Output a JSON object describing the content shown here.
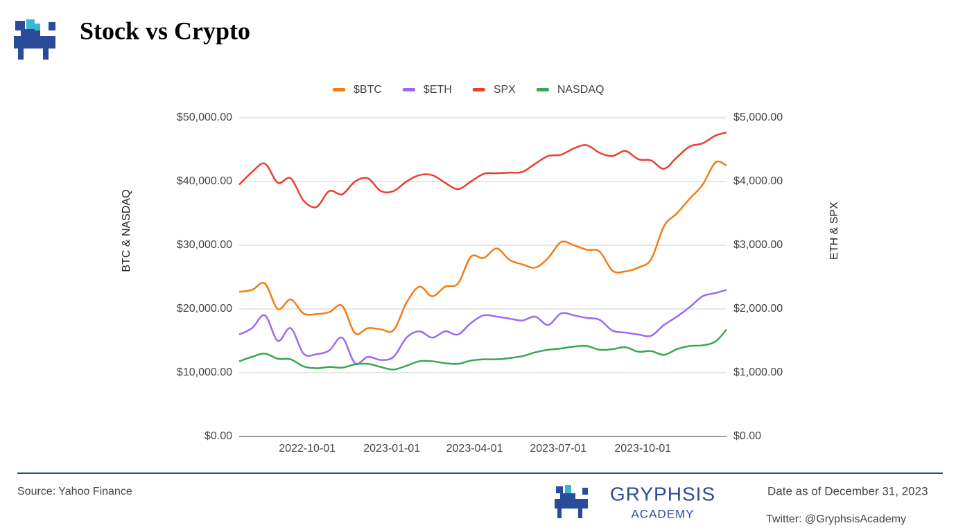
{
  "header": {
    "title": "Stock vs Crypto"
  },
  "chart_data": {
    "type": "line",
    "x": [
      "2022-07-19",
      "2022-08-02",
      "2022-08-16",
      "2022-08-30",
      "2022-09-13",
      "2022-09-27",
      "2022-10-11",
      "2022-10-25",
      "2022-11-08",
      "2022-11-22",
      "2022-12-06",
      "2022-12-20",
      "2023-01-03",
      "2023-01-17",
      "2023-01-31",
      "2023-02-14",
      "2023-02-28",
      "2023-03-14",
      "2023-03-28",
      "2023-04-11",
      "2023-04-25",
      "2023-05-09",
      "2023-05-23",
      "2023-06-06",
      "2023-06-20",
      "2023-07-04",
      "2023-07-18",
      "2023-08-01",
      "2023-08-15",
      "2023-08-29",
      "2023-09-12",
      "2023-09-26",
      "2023-10-10",
      "2023-10-24",
      "2023-11-07",
      "2023-11-21",
      "2023-12-05",
      "2023-12-19",
      "2023-12-31"
    ],
    "series": [
      {
        "name": "$BTC",
        "color": "#f57c10",
        "axis": "y",
        "values": [
          22700,
          23000,
          24000,
          20000,
          21500,
          19300,
          19200,
          19500,
          20500,
          16200,
          17000,
          16800,
          16700,
          21000,
          23500,
          22000,
          23500,
          24000,
          28200,
          28000,
          29500,
          27700,
          27000,
          26500,
          28000,
          30500,
          30000,
          29300,
          29000,
          26000,
          25900,
          26500,
          27800,
          33000,
          35000,
          37300,
          39500,
          43000,
          42500
        ]
      },
      {
        "name": "$ETH",
        "color": "#9a6bf0",
        "axis": "y2",
        "values": [
          1600,
          1700,
          1900,
          1500,
          1700,
          1300,
          1290,
          1350,
          1550,
          1150,
          1250,
          1200,
          1250,
          1550,
          1650,
          1550,
          1650,
          1600,
          1780,
          1900,
          1880,
          1850,
          1820,
          1880,
          1750,
          1930,
          1900,
          1860,
          1830,
          1660,
          1630,
          1600,
          1580,
          1750,
          1880,
          2030,
          2200,
          2250,
          2300
        ]
      },
      {
        "name": "SPX",
        "color": "#e8402f",
        "axis": "y2",
        "values": [
          3950,
          4150,
          4280,
          3980,
          4050,
          3700,
          3600,
          3850,
          3800,
          4000,
          4050,
          3850,
          3850,
          4000,
          4100,
          4100,
          3980,
          3880,
          4000,
          4120,
          4130,
          4140,
          4150,
          4280,
          4400,
          4420,
          4520,
          4570,
          4450,
          4400,
          4480,
          4350,
          4330,
          4200,
          4380,
          4550,
          4600,
          4720,
          4770
        ]
      },
      {
        "name": "NASDAQ",
        "color": "#34a853",
        "axis": "y",
        "values": [
          11800,
          12500,
          13000,
          12200,
          12100,
          11000,
          10700,
          10900,
          10800,
          11300,
          11400,
          10900,
          10500,
          11100,
          11800,
          11800,
          11500,
          11400,
          11900,
          12100,
          12100,
          12300,
          12600,
          13200,
          13600,
          13800,
          14100,
          14200,
          13600,
          13700,
          14000,
          13300,
          13400,
          12800,
          13700,
          14200,
          14300,
          14900,
          16800
        ]
      }
    ],
    "xlim": [
      "2022-07-19",
      "2023-12-31"
    ],
    "xticks": [
      "2022-10-01",
      "2023-01-01",
      "2023-04-01",
      "2023-07-01",
      "2023-10-01"
    ],
    "ylim": [
      0,
      50000
    ],
    "yticks": [
      {
        "value": 0,
        "label": "$0.00"
      },
      {
        "value": 10000,
        "label": "$10,000.00"
      },
      {
        "value": 20000,
        "label": "$20,000.00"
      },
      {
        "value": 30000,
        "label": "$30,000.00"
      },
      {
        "value": 40000,
        "label": "$40,000.00"
      },
      {
        "value": 50000,
        "label": "$50,000.00"
      }
    ],
    "y2lim": [
      0,
      5000
    ],
    "y2ticks": [
      {
        "value": 0,
        "label": "$0.00"
      },
      {
        "value": 1000,
        "label": "$1,000.00"
      },
      {
        "value": 2000,
        "label": "$2,000.00"
      },
      {
        "value": 3000,
        "label": "$3,000.00"
      },
      {
        "value": 4000,
        "label": "$4,000.00"
      },
      {
        "value": 5000,
        "label": "$5,000.00"
      }
    ],
    "ylabel": "BTC & NASDAQ",
    "y2label": "ETH & SPX",
    "grid": true,
    "legend": "top"
  },
  "footer": {
    "source": "Source: Yahoo Finance",
    "brand": "GRYPHSIS",
    "brand_sub": "ACADEMY",
    "date": "Date as of December 31, 2023",
    "twitter": "Twitter: @GryphsisAcademy"
  }
}
